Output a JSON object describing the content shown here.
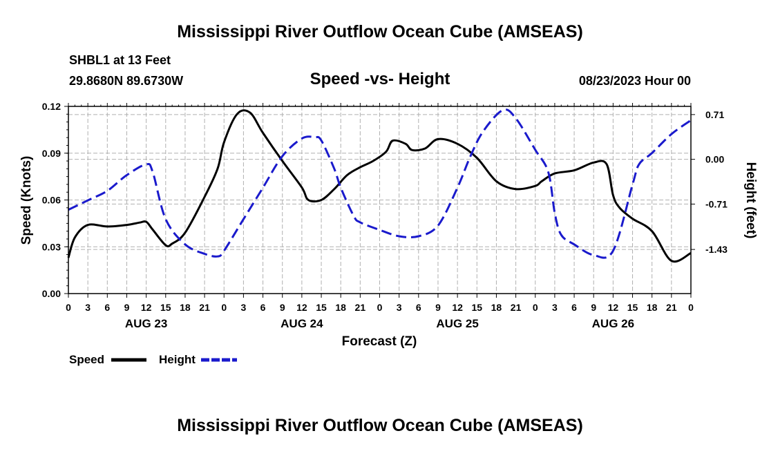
{
  "header": {
    "title": "Mississippi River Outflow Ocean Cube (AMSEAS)",
    "station": "SHBL1 at 13 Feet",
    "coords": "29.8680N  89.6730W",
    "subtitle": "Speed -vs- Height",
    "timestamp": "08/23/2023 Hour 00"
  },
  "footer": {
    "title": "Mississippi River Outflow Ocean Cube (AMSEAS)"
  },
  "colors": {
    "speed": "#000000",
    "height": "#1a1acc",
    "grid": "#b0b0b0"
  },
  "chart_data": {
    "type": "line",
    "title": "Speed -vs- Height",
    "xlabel": "Forecast (Z)",
    "ylabel": "Speed (Knots)",
    "y2label": "Height (feet)",
    "xlim": [
      0,
      96
    ],
    "ylim": [
      0,
      0.12
    ],
    "y2lim": [
      -2.13,
      0.84
    ],
    "x_ticks": [
      0,
      3,
      6,
      9,
      12,
      15,
      18,
      21,
      24,
      27,
      30,
      33,
      36,
      39,
      42,
      45,
      48,
      51,
      54,
      57,
      60,
      63,
      66,
      69,
      72,
      75,
      78,
      81,
      84,
      87,
      90,
      93,
      96
    ],
    "x_tick_labels": [
      "0",
      "3",
      "6",
      "9",
      "12",
      "15",
      "18",
      "21",
      "0",
      "3",
      "6",
      "9",
      "12",
      "15",
      "18",
      "21",
      "0",
      "3",
      "6",
      "9",
      "12",
      "15",
      "18",
      "21",
      "0",
      "3",
      "6",
      "9",
      "12",
      "15",
      "18",
      "21",
      "0"
    ],
    "date_labels": [
      {
        "label": "AUG 23",
        "x": 12
      },
      {
        "label": "AUG 24",
        "x": 36
      },
      {
        "label": "AUG 25",
        "x": 60
      },
      {
        "label": "AUG 26",
        "x": 84
      }
    ],
    "y_ticks": [
      0,
      0.03,
      0.06,
      0.09,
      0.12
    ],
    "y_tick_labels": [
      "0.00",
      "0.03",
      "0.06",
      "0.09",
      "0.12"
    ],
    "y2_ticks": [
      -1.43,
      -0.71,
      0.0,
      0.71
    ],
    "y2_tick_labels": [
      "-1.43",
      "-0.71",
      "0.00",
      "0.71"
    ],
    "legend": [
      {
        "name": "Speed",
        "style": "solid"
      },
      {
        "name": "Height",
        "style": "dashed"
      }
    ],
    "series": [
      {
        "name": "Speed",
        "axis": "left",
        "style": "solid",
        "x": [
          0,
          1,
          3,
          6,
          9,
          11,
          12,
          13,
          15,
          16,
          18,
          21,
          23,
          24,
          26,
          28,
          30,
          33,
          36,
          37,
          39,
          41,
          43,
          45,
          47,
          49,
          50,
          52,
          53,
          55,
          57,
          60,
          63,
          66,
          69,
          72,
          73,
          75,
          78,
          81,
          83,
          84,
          85,
          87,
          90,
          93,
          96
        ],
        "y": [
          0.023,
          0.036,
          0.044,
          0.043,
          0.044,
          0.0455,
          0.046,
          0.041,
          0.031,
          0.032,
          0.039,
          0.062,
          0.08,
          0.097,
          0.115,
          0.116,
          0.103,
          0.085,
          0.068,
          0.06,
          0.06,
          0.067,
          0.076,
          0.081,
          0.085,
          0.091,
          0.098,
          0.096,
          0.092,
          0.093,
          0.099,
          0.096,
          0.087,
          0.072,
          0.067,
          0.069,
          0.072,
          0.077,
          0.079,
          0.084,
          0.083,
          0.063,
          0.055,
          0.048,
          0.04,
          0.021,
          0.026
        ]
      },
      {
        "name": "Height",
        "axis": "right",
        "style": "dashed",
        "x": [
          0,
          3,
          6,
          9,
          12,
          13,
          15,
          18,
          21,
          23,
          24,
          27,
          30,
          33,
          36,
          38,
          39,
          41,
          42,
          44,
          45,
          48,
          51,
          54,
          57,
          60,
          62,
          64,
          67,
          69,
          72,
          74,
          75,
          76,
          78,
          81,
          84,
          87,
          88,
          90,
          93,
          96
        ],
        "y": [
          -0.8,
          -0.65,
          -0.5,
          -0.25,
          -0.08,
          -0.2,
          -0.95,
          -1.35,
          -1.5,
          -1.54,
          -1.45,
          -0.95,
          -0.45,
          0.05,
          0.33,
          0.35,
          0.3,
          -0.15,
          -0.45,
          -0.9,
          -1.0,
          -1.12,
          -1.22,
          -1.22,
          -1.05,
          -0.45,
          0.05,
          0.45,
          0.78,
          0.65,
          0.15,
          -0.2,
          -0.85,
          -1.2,
          -1.35,
          -1.52,
          -1.45,
          -0.4,
          -0.08,
          0.1,
          0.4,
          0.62
        ]
      }
    ]
  }
}
